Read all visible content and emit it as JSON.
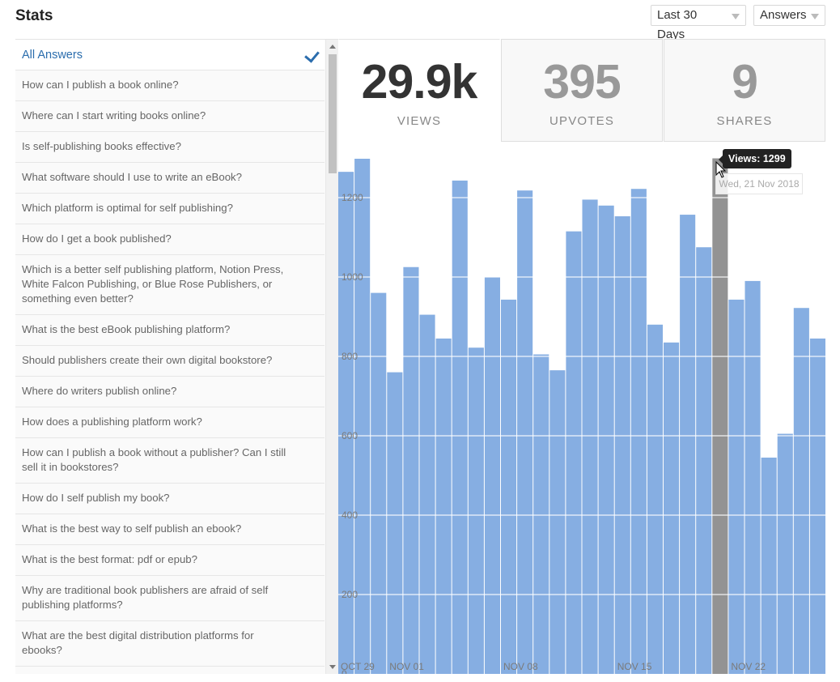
{
  "header": {
    "title": "Stats",
    "range_dropdown": "Last 30 Days",
    "type_dropdown": "Answers"
  },
  "list": {
    "all_label": "All Answers",
    "items": [
      "How can I publish a book online?",
      "Where can I start writing books online?",
      "Is self-publishing books effective?",
      "What software should I use to write an eBook?",
      "Which platform is optimal for self publishing?",
      "How do I get a book published?",
      "Which is a better self publishing platform, Notion Press, White Falcon Publishing, or Blue Rose Publishers, or something even better?",
      "What is the best eBook publishing platform?",
      "Should publishers create their own digital bookstore?",
      "Where do writers publish online?",
      "How does a publishing platform work?",
      "How can I publish a book without a publisher? Can I still sell it in bookstores?",
      "How do I self publish my book?",
      "What is the best way to self publish an ebook?",
      "What is the best format: pdf or epub?",
      "Why are traditional book publishers are afraid of self publishing platforms?",
      "What are the best digital distribution platforms for ebooks?"
    ]
  },
  "stats": [
    {
      "value": "29.9k",
      "label": "VIEWS"
    },
    {
      "value": "395",
      "label": "UPVOTES"
    },
    {
      "value": "9",
      "label": "SHARES"
    }
  ],
  "tooltip": {
    "value_text": "Views: 1299",
    "date_text": "Wed, 21 Nov 2018"
  },
  "colors": {
    "bar": "#86aee2",
    "bar_highlight": "#939393",
    "link": "#2b6dad"
  },
  "chart_data": {
    "type": "bar",
    "ylim": [
      0,
      1300
    ],
    "yticks": [
      0,
      200,
      400,
      600,
      800,
      1000,
      1200
    ],
    "xtick_labels": [
      {
        "label": "OCT 29",
        "index": 0
      },
      {
        "label": "NOV 01",
        "index": 3
      },
      {
        "label": "NOV 08",
        "index": 10
      },
      {
        "label": "NOV 15",
        "index": 17
      },
      {
        "label": "NOV 22",
        "index": 24
      }
    ],
    "highlight_index": 23,
    "series": [
      {
        "values": [
          1265,
          1298,
          960,
          760,
          1025,
          905,
          845,
          1243,
          822,
          1000,
          943,
          1218,
          805,
          765,
          1115,
          1195,
          1180,
          1153,
          1222,
          880,
          835,
          1157,
          1075,
          1299,
          943,
          990,
          545,
          605,
          922,
          845
        ]
      }
    ]
  }
}
